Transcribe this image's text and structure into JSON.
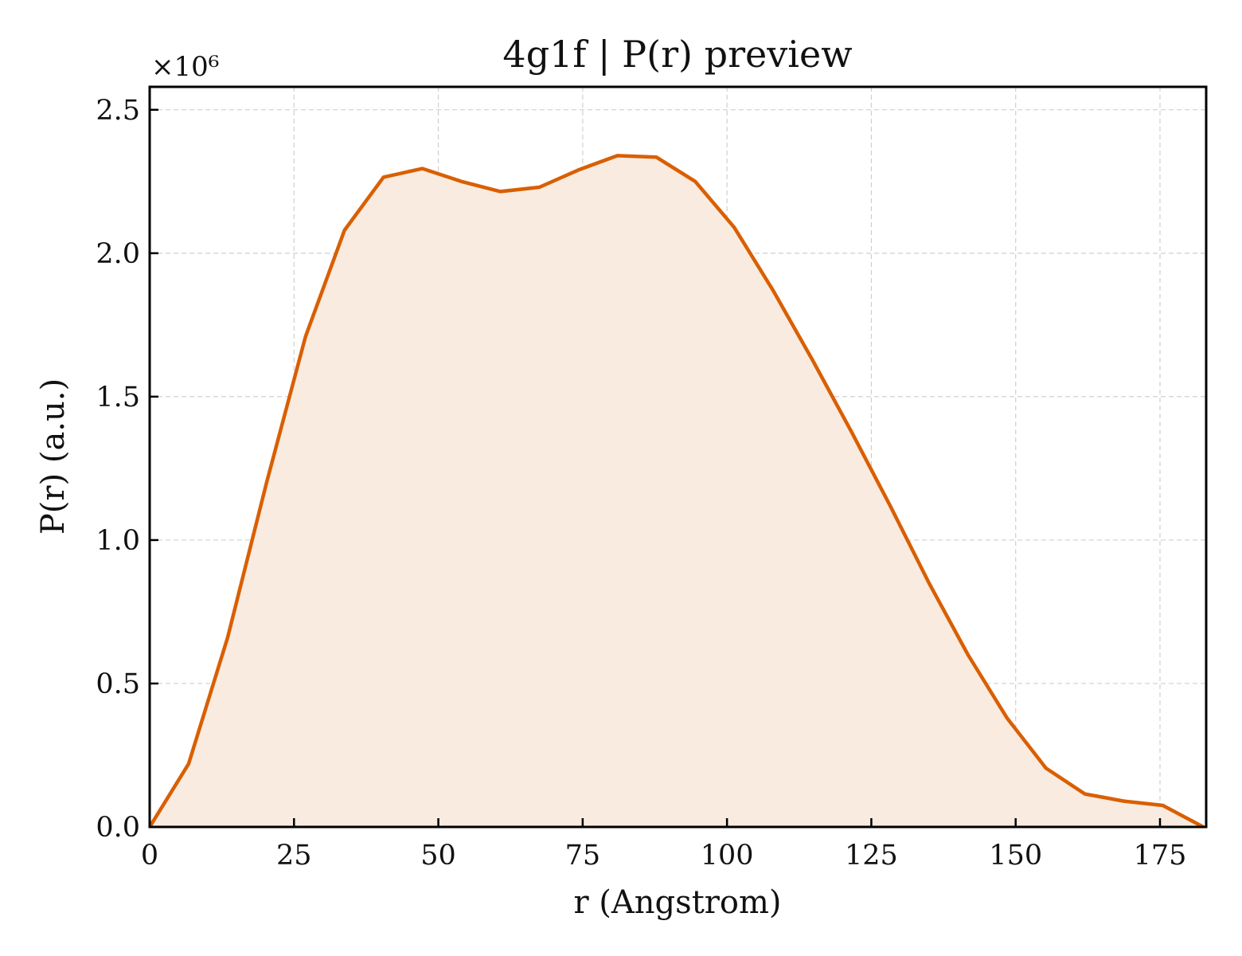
{
  "chart_data": {
    "type": "area",
    "title": "4g1f | P(r) preview",
    "xlabel": "r (Angstrom)",
    "ylabel": "P(r) (a.u.)",
    "y_multiplier": "×10⁶",
    "xlim": [
      0,
      183
    ],
    "ylim": [
      0,
      2.58
    ],
    "xticks": [
      0,
      25,
      50,
      75,
      100,
      125,
      150,
      175
    ],
    "yticks": [
      0.0,
      0.5,
      1.0,
      1.5,
      2.0,
      2.5
    ],
    "xtick_labels": [
      "0",
      "25",
      "50",
      "75",
      "100",
      "125",
      "150",
      "175"
    ],
    "ytick_labels": [
      "0.0",
      "0.5",
      "1.0",
      "1.5",
      "2.0",
      "2.5"
    ],
    "grid": true,
    "series": [
      {
        "color": "#d95f02",
        "fill_color": "#f9ebe0",
        "x": [
          0,
          6.75,
          13.5,
          20.25,
          27.0,
          33.75,
          40.5,
          47.25,
          54.0,
          60.75,
          67.5,
          74.25,
          81.0,
          87.75,
          94.5,
          101.25,
          108.0,
          114.75,
          121.5,
          128.25,
          135.0,
          141.75,
          148.5,
          155.25,
          162.0,
          168.75,
          175.5,
          182.5
        ],
        "y": [
          0.0,
          0.22,
          0.66,
          1.2,
          1.71,
          2.08,
          2.265,
          2.295,
          2.25,
          2.215,
          2.23,
          2.29,
          2.34,
          2.335,
          2.25,
          2.09,
          1.87,
          1.63,
          1.38,
          1.12,
          0.85,
          0.6,
          0.38,
          0.205,
          0.115,
          0.09,
          0.075,
          0.0
        ]
      }
    ]
  }
}
